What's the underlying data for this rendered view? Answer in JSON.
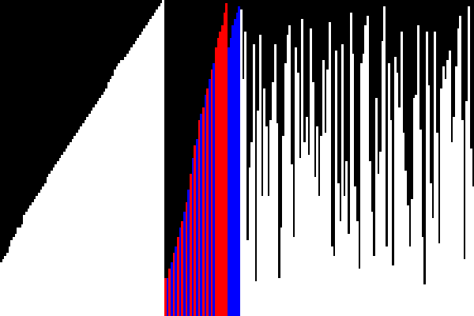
{
  "colors": {
    "background": "#000000",
    "sorted": "#ffffff",
    "unsorted": "#ffffff",
    "compare": "#0000ff",
    "pivot": "#ff0000"
  },
  "bar_groups": {
    "sorted": [
      17,
      18,
      19,
      20,
      22,
      24,
      25,
      26,
      28,
      28,
      29,
      32,
      33,
      34,
      35,
      36,
      37,
      38,
      39,
      40,
      41,
      42,
      44,
      45,
      46,
      47,
      48,
      49,
      50,
      51,
      52,
      53,
      54,
      55,
      56,
      57,
      58,
      59,
      60,
      61,
      62,
      63,
      64,
      65,
      66,
      67,
      68,
      69,
      70,
      71,
      72,
      74,
      75,
      76,
      78,
      79,
      80,
      81,
      81,
      82,
      83,
      84,
      85,
      86,
      87,
      88,
      89,
      90,
      91,
      92,
      93,
      94,
      95,
      96,
      97,
      98,
      99,
      100
    ],
    "partition_highlight": [
      {
        "value": 12,
        "role": "pivot"
      },
      {
        "value": 12,
        "role": "compare"
      },
      {
        "value": 15,
        "role": "pivot"
      },
      {
        "value": 17,
        "role": "compare"
      },
      {
        "value": 20,
        "role": "pivot"
      },
      {
        "value": 22,
        "role": "compare"
      },
      {
        "value": 25,
        "role": "pivot"
      },
      {
        "value": 28,
        "role": "compare"
      },
      {
        "value": 30,
        "role": "pivot"
      },
      {
        "value": 33,
        "role": "compare"
      },
      {
        "value": 36,
        "role": "pivot"
      },
      {
        "value": 40,
        "role": "compare"
      },
      {
        "value": 45,
        "role": "pivot"
      },
      {
        "value": 50,
        "role": "compare"
      },
      {
        "value": 54,
        "role": "pivot"
      },
      {
        "value": 56,
        "role": "compare"
      },
      {
        "value": 62,
        "role": "pivot"
      },
      {
        "value": 64,
        "role": "compare"
      },
      {
        "value": 66,
        "role": "pivot"
      },
      {
        "value": 70,
        "role": "compare"
      },
      {
        "value": 72,
        "role": "pivot"
      },
      {
        "value": 75,
        "role": "compare"
      },
      {
        "value": 78,
        "role": "pivot"
      },
      {
        "value": 80,
        "role": "compare"
      },
      {
        "value": 85,
        "role": "pivot"
      },
      {
        "value": 88,
        "role": "pivot"
      },
      {
        "value": 90,
        "role": "pivot"
      },
      {
        "value": 92,
        "role": "pivot"
      },
      {
        "value": 96,
        "role": "pivot"
      },
      {
        "value": 99,
        "role": "pivot"
      },
      {
        "value": 85,
        "role": "compare"
      },
      {
        "value": 88,
        "role": "compare"
      },
      {
        "value": 92,
        "role": "compare"
      },
      {
        "value": 94,
        "role": "compare"
      },
      {
        "value": 96,
        "role": "compare"
      },
      {
        "value": 98,
        "role": "compare"
      }
    ],
    "unsorted": [
      97,
      75,
      90,
      24,
      47,
      55,
      86,
      11,
      65,
      89,
      38,
      72,
      60,
      38,
      62,
      74,
      86,
      61,
      12,
      28,
      57,
      80,
      89,
      92,
      48,
      25,
      85,
      77,
      50,
      94,
      55,
      63,
      51,
      91,
      74,
      44,
      60,
      38,
      57,
      81,
      58,
      78,
      93,
      22,
      19,
      84,
      42,
      30,
      86,
      38,
      49,
      26,
      96,
      83,
      41,
      30,
      15,
      80,
      83,
      92,
      95,
      49,
      33,
      19,
      69,
      45,
      52,
      87,
      98,
      22,
      80,
      62,
      16,
      82,
      77,
      66,
      90,
      58,
      46,
      35,
      22,
      37,
      69,
      70,
      92,
      59,
      25,
      10,
      90,
      73,
      42,
      31,
      90,
      58,
      23,
      72,
      79,
      75,
      81,
      84,
      55,
      63,
      79,
      91,
      95,
      62,
      18,
      68,
      98,
      53,
      41
    ]
  }
}
